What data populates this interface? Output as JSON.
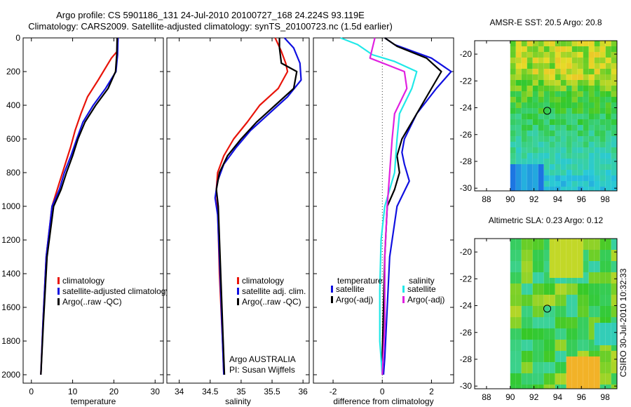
{
  "header": {
    "title_line1": "Argo profile: CS 5901186_131 24-Jul-2010 20100727_168 24.224S 93.119E",
    "title_line2": "Climatology: CARS2009. Satellite-adjusted climatology: synTS_20100723.nc (1.5d earlier)"
  },
  "colors": {
    "climatology": "#e8140a",
    "satellite": "#1010e0",
    "argo": "#000000",
    "sal_satellite": "#20e8e8",
    "sal_argo": "#e020e0"
  },
  "chart_data": [
    {
      "type": "line",
      "id": "temperature",
      "xlabel": "temperature",
      "xlim": [
        -2,
        32
      ],
      "ylim": [
        2050,
        0
      ],
      "xticks": [
        0,
        10,
        20,
        30
      ],
      "yticks": [
        0,
        200,
        400,
        600,
        800,
        1000,
        1200,
        1400,
        1600,
        1800,
        2000
      ],
      "legend": [
        "climatology",
        "satellite-adjusted climatology",
        "Argo(..raw -QC)"
      ],
      "legend_placement": "lower-center",
      "series": [
        {
          "name": "climatology",
          "color": "climatology",
          "x": [
            21.0,
            20.8,
            19.4,
            16.2,
            13.6,
            12.0,
            10.6,
            9.5,
            8.2,
            6.9,
            5.0,
            3.6,
            2.8,
            2.3
          ],
          "y": [
            0,
            80,
            120,
            250,
            350,
            450,
            550,
            650,
            750,
            850,
            1000,
            1300,
            1700,
            2000
          ]
        },
        {
          "name": "satellite-adjusted climatology",
          "color": "satellite",
          "x": [
            21.0,
            20.9,
            20.5,
            18.0,
            15.0,
            12.5,
            11.0,
            9.6,
            8.0,
            6.8,
            5.0,
            3.6,
            2.8,
            2.3
          ],
          "y": [
            0,
            100,
            200,
            300,
            400,
            500,
            600,
            700,
            800,
            900,
            1000,
            1300,
            1700,
            2000
          ]
        },
        {
          "name": "Argo(..raw -QC)",
          "color": "argo",
          "x": [
            20.8,
            20.7,
            20.4,
            18.6,
            15.6,
            13.0,
            11.3,
            10.0,
            8.5,
            7.2,
            5.4,
            3.8,
            2.9,
            2.3
          ],
          "y": [
            0,
            100,
            200,
            300,
            400,
            500,
            600,
            700,
            800,
            900,
            1000,
            1300,
            1700,
            2000
          ]
        }
      ]
    },
    {
      "type": "line",
      "id": "salinity",
      "xlabel": "salinity",
      "xlim": [
        33.8,
        36.1
      ],
      "ylim": [
        2050,
        0
      ],
      "xticks": [
        34,
        34.5,
        35,
        35.5,
        36
      ],
      "legend": [
        "climatology",
        "satellite adj. clim.",
        "Argo(..raw -QC)"
      ],
      "legend_placement": "lower-right",
      "annotations": [
        "Argo AUSTRALIA",
        "PI: Susan Wijffels"
      ],
      "series": [
        {
          "name": "climatology",
          "color": "climatology",
          "x": [
            35.55,
            35.65,
            35.72,
            35.75,
            35.6,
            35.3,
            35.1,
            34.88,
            34.72,
            34.62,
            34.6,
            34.62,
            34.65,
            34.7,
            34.72
          ],
          "y": [
            0,
            80,
            150,
            200,
            300,
            400,
            500,
            600,
            700,
            800,
            900,
            1000,
            1400,
            1800,
            2000
          ]
        },
        {
          "name": "satellite adj. clim.",
          "color": "satellite",
          "x": [
            35.7,
            35.85,
            35.95,
            35.97,
            35.75,
            35.45,
            35.15,
            34.92,
            34.72,
            34.62,
            34.58,
            34.62,
            34.66,
            34.7,
            34.72
          ],
          "y": [
            0,
            60,
            150,
            250,
            350,
            450,
            550,
            650,
            750,
            850,
            950,
            1050,
            1400,
            1800,
            2000
          ]
        },
        {
          "name": "Argo(..raw -QC)",
          "color": "argo",
          "x": [
            35.62,
            35.62,
            35.65,
            35.9,
            35.85,
            35.55,
            35.25,
            35.0,
            34.78,
            34.65,
            34.6,
            34.63,
            34.67,
            34.71,
            34.73
          ],
          "y": [
            0,
            60,
            150,
            200,
            300,
            400,
            500,
            600,
            700,
            800,
            900,
            1000,
            1400,
            1800,
            2000
          ]
        }
      ]
    },
    {
      "type": "line",
      "id": "difference",
      "xlabel": "difference from climatology",
      "xlim": [
        -2.8,
        2.9
      ],
      "ylim": [
        2050,
        0
      ],
      "xticks": [
        -2,
        0,
        2
      ],
      "legend_titles": [
        "temperature",
        "salinity"
      ],
      "legend": [
        "satellite",
        "Argo(-adj)",
        "satellite",
        "Argo(-adj)"
      ],
      "legend_placement": "lower-center",
      "series": [
        {
          "name": "temperature satellite",
          "color": "satellite",
          "x": [
            0.1,
            0.5,
            2.0,
            2.8,
            2.2,
            1.4,
            0.9,
            0.8,
            0.9,
            1.1,
            0.6,
            0.3,
            0.2,
            0.1,
            0.05
          ],
          "y": [
            0,
            40,
            120,
            200,
            300,
            450,
            600,
            680,
            750,
            850,
            1000,
            1300,
            1600,
            1900,
            2000
          ]
        },
        {
          "name": "temperature Argo(-adj)",
          "color": "argo",
          "x": [
            0.1,
            0.6,
            1.8,
            2.4,
            2.0,
            1.4,
            0.8,
            0.6,
            0.7,
            0.5,
            0.2,
            0.1,
            0.05,
            0.0,
            0.0
          ],
          "y": [
            0,
            50,
            120,
            200,
            300,
            450,
            600,
            700,
            800,
            900,
            1000,
            1300,
            1600,
            1900,
            2000
          ]
        },
        {
          "name": "salinity satellite",
          "color": "sal_satellite",
          "x": [
            -1.7,
            -1.0,
            -0.4,
            0.5,
            1.4,
            1.2,
            0.7,
            0.6,
            0.5,
            0.1,
            -0.05,
            -0.1,
            -0.1,
            0.0
          ],
          "y": [
            0,
            40,
            100,
            140,
            200,
            300,
            450,
            600,
            800,
            1000,
            1200,
            1500,
            1800,
            2000
          ]
        },
        {
          "name": "salinity Argo(-adj)",
          "color": "sal_argo",
          "x": [
            -0.3,
            -0.4,
            -0.5,
            0.2,
            0.9,
            1.0,
            0.5,
            0.4,
            0.3,
            0.2,
            0.1,
            0.1,
            0.0
          ],
          "y": [
            0,
            60,
            120,
            160,
            200,
            300,
            450,
            600,
            800,
            1000,
            1300,
            1700,
            2000
          ]
        }
      ]
    },
    {
      "type": "heatmap",
      "id": "sst_map",
      "title": "AMSR-E SST: 20.5 Argo: 20.8",
      "xlim": [
        87,
        99
      ],
      "ylim": [
        -30.2,
        -19
      ],
      "xticks": [
        88,
        90,
        92,
        94,
        96,
        98
      ],
      "yticks": [
        -20,
        -22,
        -24,
        -26,
        -28,
        -30
      ],
      "marker": {
        "lon": 93.119,
        "lat": -24.224
      }
    },
    {
      "type": "heatmap",
      "id": "sla_map",
      "title": "Altimetric SLA: 0.23 Argo: 0.12",
      "xlim": [
        87,
        99
      ],
      "ylim": [
        -30.2,
        -19
      ],
      "xticks": [
        88,
        90,
        92,
        94,
        96,
        98
      ],
      "yticks": [
        -20,
        -22,
        -24,
        -26,
        -28,
        -30
      ],
      "marker": {
        "lon": 93.119,
        "lat": -24.224
      }
    }
  ],
  "side_label": "CSIRO 30-Jul-2010 10:32:33"
}
